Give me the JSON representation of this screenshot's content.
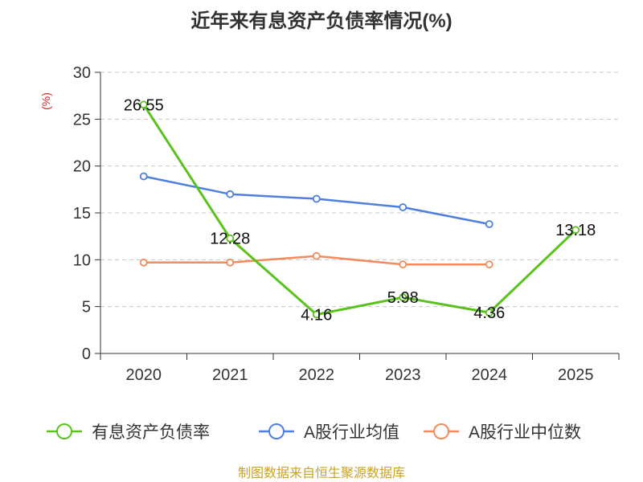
{
  "chart_data": {
    "type": "line",
    "title": "近年来有息资产负债率情况(%)",
    "ylabel": "(%)",
    "xlabel": "",
    "categories": [
      "2020",
      "2021",
      "2022",
      "2023",
      "2024",
      "2025"
    ],
    "ylim": [
      0,
      30
    ],
    "yticks": [
      0,
      5,
      10,
      15,
      20,
      25,
      30
    ],
    "grid": true,
    "legend_position": "bottom",
    "series": [
      {
        "name": "有息资产负债率",
        "color": "#5ac21c",
        "values": [
          26.55,
          12.28,
          4.16,
          5.98,
          4.36,
          13.18
        ],
        "data_labels": [
          "26.55",
          "12.28",
          "4.16",
          "5.98",
          "4.36",
          "13.18"
        ]
      },
      {
        "name": "A股行业均值",
        "color": "#4e7fdc",
        "values": [
          18.9,
          17.0,
          16.5,
          15.6,
          13.8,
          null
        ]
      },
      {
        "name": "A股行业中位数",
        "color": "#f28b5b",
        "values": [
          9.7,
          9.7,
          10.4,
          9.5,
          9.5,
          null
        ]
      }
    ],
    "source": "制图数据来自恒生聚源数据库"
  }
}
